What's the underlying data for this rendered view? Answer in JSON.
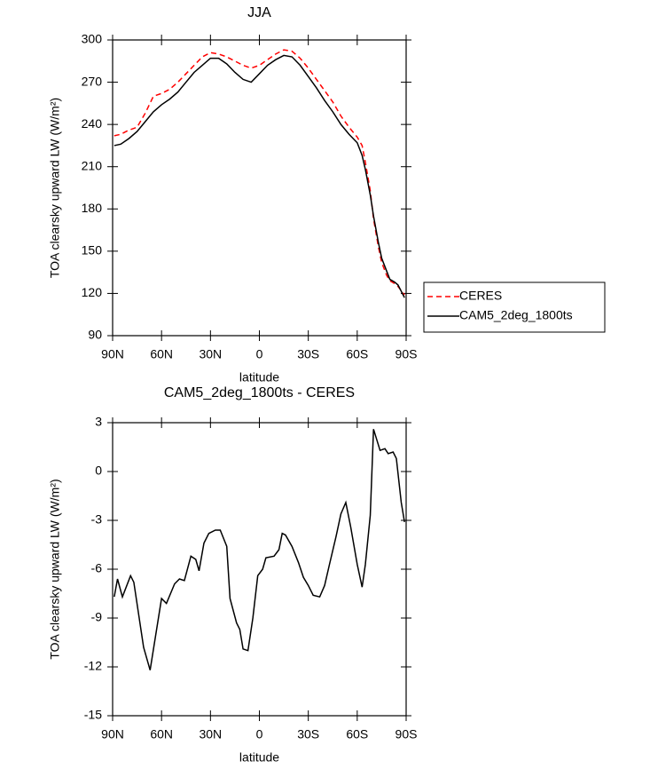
{
  "chart_data": [
    {
      "type": "line",
      "title": "JJA",
      "xlabel": "latitude",
      "ylabel": "TOA clearsky upward LW (W/m²)",
      "xlim": [
        90,
        -90
      ],
      "xticks": [
        {
          "value": 90,
          "label": "90N"
        },
        {
          "value": 60,
          "label": "60N"
        },
        {
          "value": 30,
          "label": "30N"
        },
        0,
        {
          "value": -30,
          "label": "30S"
        },
        {
          "value": -60,
          "label": "60S"
        },
        {
          "value": -90,
          "label": "90S"
        }
      ],
      "ylim": [
        90,
        300
      ],
      "yticks": [
        90,
        120,
        150,
        180,
        210,
        240,
        270,
        300
      ],
      "legend": "right",
      "x": [
        89,
        85,
        80,
        75,
        70,
        65,
        60,
        55,
        50,
        45,
        40,
        35,
        30,
        25,
        20,
        15,
        10,
        5,
        0,
        -5,
        -10,
        -15,
        -20,
        -25,
        -30,
        -35,
        -40,
        -45,
        -50,
        -55,
        -60,
        -63,
        -65,
        -68,
        -70,
        -73,
        -75,
        -78,
        -80,
        -83,
        -85,
        -89
      ],
      "series": [
        {
          "name": "CERES",
          "color": "#ff0000",
          "linestyle": "dashed",
          "values": [
            232,
            233,
            236,
            238,
            248,
            260,
            262,
            265,
            270,
            276,
            282,
            288,
            291,
            290,
            288,
            285,
            282,
            280,
            282,
            286,
            290,
            293,
            292,
            287,
            280,
            272,
            264,
            256,
            246,
            238,
            231,
            225,
            213,
            193,
            173,
            153,
            142,
            133,
            129,
            127,
            125,
            119
          ]
        },
        {
          "name": "CAM5_2deg_1800ts",
          "color": "#000000",
          "linestyle": "solid",
          "values": [
            225,
            226,
            230,
            235,
            242,
            249,
            254,
            258,
            263,
            270,
            277,
            282,
            287,
            287,
            283,
            277,
            272,
            270,
            276,
            282,
            286,
            289,
            288,
            282,
            274,
            266,
            257,
            249,
            240,
            233,
            227,
            218,
            208,
            190,
            175,
            156,
            145,
            136,
            130,
            128,
            126,
            117
          ]
        }
      ]
    },
    {
      "type": "line",
      "title": "CAM5_2deg_1800ts - CERES",
      "xlabel": "latitude",
      "ylabel": "TOA clearsky upward LW (W/m²)",
      "xlim": [
        90,
        -90
      ],
      "xticks": [
        {
          "value": 90,
          "label": "90N"
        },
        {
          "value": 60,
          "label": "60N"
        },
        {
          "value": 30,
          "label": "30N"
        },
        0,
        {
          "value": -30,
          "label": "30S"
        },
        {
          "value": -60,
          "label": "60S"
        },
        {
          "value": -90,
          "label": "90S"
        }
      ],
      "ylim": [
        -15,
        3
      ],
      "yticks": [
        -15,
        -12,
        -9,
        -6,
        -3,
        0,
        3
      ],
      "x": [
        89,
        87,
        84,
        79,
        77,
        71,
        67,
        60,
        57,
        52,
        49,
        46,
        42,
        39,
        37,
        34,
        31,
        27,
        24,
        20,
        18,
        14,
        12,
        10,
        7,
        4,
        1,
        -2,
        -4,
        -9,
        -12,
        -14,
        -16,
        -20,
        -24,
        -27,
        -30,
        -33,
        -37,
        -40,
        -43,
        -47,
        -50,
        -53,
        -56,
        -60,
        -63,
        -65,
        -68,
        -70,
        -74,
        -77,
        -79,
        -82,
        -84,
        -87,
        -89
      ],
      "series": [
        {
          "color": "#000000",
          "linestyle": "solid",
          "values": [
            -7.7,
            -6.6,
            -7.7,
            -6.4,
            -6.8,
            -10.8,
            -12.2,
            -7.8,
            -8.1,
            -6.9,
            -6.6,
            -6.7,
            -5.2,
            -5.4,
            -6.1,
            -4.4,
            -3.8,
            -3.6,
            -3.6,
            -4.6,
            -7.8,
            -9.3,
            -9.7,
            -10.9,
            -11.0,
            -9.0,
            -6.4,
            -6.0,
            -5.3,
            -5.2,
            -4.8,
            -3.8,
            -3.9,
            -4.6,
            -5.6,
            -6.5,
            -7.0,
            -7.6,
            -7.7,
            -7.0,
            -5.7,
            -4.0,
            -2.6,
            -1.9,
            -3.4,
            -5.7,
            -7.1,
            -5.7,
            -2.7,
            2.6,
            1.3,
            1.4,
            1.1,
            1.2,
            0.8,
            -1.9,
            -3.1
          ]
        }
      ]
    }
  ]
}
